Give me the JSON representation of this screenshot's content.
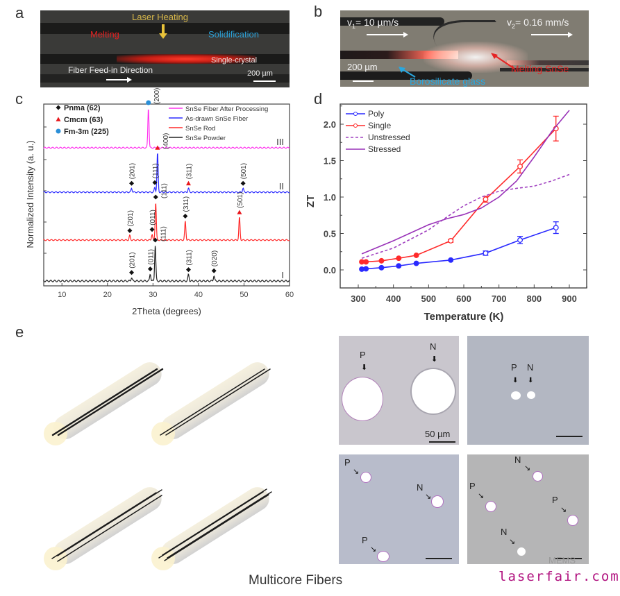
{
  "panels": {
    "a": {
      "label": "a",
      "title": "Laser Heating",
      "melting": "Melting",
      "solidification": "Solidification",
      "single_crystal": "Single-crystal",
      "feed_direction": "Fiber Feed-in Direction",
      "scale": "200 µm",
      "colors": {
        "title": "#d9b94a",
        "melting": "#e02020",
        "solidification": "#2a9fd6"
      }
    },
    "b": {
      "label": "b",
      "v1_prefix": "v",
      "v1_sub": "1",
      "v1_value": "= 10 µm/s",
      "v2_prefix": "v",
      "v2_sub": "2",
      "v2_value": "= 0.16 mm/s",
      "melting": "Melting SnSe",
      "glass": "Borosilicate glass",
      "scale": "200 µm",
      "colors": {
        "melting": "#e52424",
        "glass": "#29a8e0"
      }
    },
    "c": {
      "label": "c"
    },
    "d": {
      "label": "d"
    },
    "e": {
      "label": "e",
      "caption": "Multicore Fibers",
      "micrographs": [
        {
          "markers": [
            "P",
            "N"
          ],
          "scale": "50 µm"
        },
        {
          "markers": [
            "P",
            "N"
          ],
          "scale": ""
        },
        {
          "markers": [
            "P",
            "N",
            "P"
          ],
          "scale": ""
        },
        {
          "markers": [
            "N",
            "P",
            "P",
            "N"
          ],
          "scale": ""
        }
      ],
      "fiber_core_counts": [
        2,
        2,
        3,
        4
      ]
    }
  },
  "watermark": {
    "text": "laserfair.com",
    "overlay": "MEMS"
  },
  "chart_data": [
    {
      "type": "line",
      "panel": "c",
      "title": "",
      "xlabel": "2Theta (degrees)",
      "ylabel": "Normalized Intensity (a. u.)",
      "xlim": [
        6,
        60
      ],
      "xticks": [
        10,
        20,
        30,
        40,
        50,
        60
      ],
      "legend_phases": [
        {
          "symbol": "diamond",
          "color": "#111111",
          "label": "Pnma (62)"
        },
        {
          "symbol": "triangle",
          "color": "#e8161b",
          "label": "Cmcm (63)"
        },
        {
          "symbol": "circle",
          "color": "#2a8fd8",
          "label": "Fm-3m (225)"
        }
      ],
      "legend_position": "top-right",
      "series": [
        {
          "name": "SnSe Fiber After Processing",
          "color": "#ff33ee",
          "roman": "III",
          "peaks": [
            {
              "x": 29.0,
              "h": 1.0,
              "hkl": "(200)",
              "phase": "circle"
            }
          ]
        },
        {
          "name": "As-drawn SnSe Fiber",
          "color": "#2b2bff",
          "roman": "II",
          "peaks": [
            {
              "x": 25.3,
              "h": 0.1,
              "hkl": "(201)",
              "phase": "diamond"
            },
            {
              "x": 30.4,
              "h": 0.12,
              "hkl": "(111)",
              "phase": "diamond"
            },
            {
              "x": 31.0,
              "h": 1.0,
              "hkl": "(400)",
              "phase": "triangle"
            },
            {
              "x": 37.8,
              "h": 0.1,
              "hkl": "(311)",
              "phase": "triangle"
            },
            {
              "x": 49.8,
              "h": 0.1,
              "hkl": "(501)",
              "phase": "diamond"
            }
          ]
        },
        {
          "name": "SnSe Rod",
          "color": "#ff2a2a",
          "roman": "",
          "peaks": [
            {
              "x": 24.9,
              "h": 0.12,
              "hkl": "(201)",
              "phase": "diamond"
            },
            {
              "x": 29.8,
              "h": 0.15,
              "hkl": "(011)",
              "phase": "diamond"
            },
            {
              "x": 30.6,
              "h": 1.0,
              "hkl": "(111)",
              "phase": "diamond"
            },
            {
              "x": 37.1,
              "h": 0.5,
              "hkl": "(311)",
              "phase": "diamond"
            },
            {
              "x": 49.0,
              "h": 0.6,
              "hkl": "(501)",
              "phase": "triangle"
            }
          ]
        },
        {
          "name": "SnSe Powder",
          "color": "#222222",
          "roman": "I",
          "peaks": [
            {
              "x": 25.3,
              "h": 0.1,
              "hkl": "(201)",
              "phase": "diamond"
            },
            {
              "x": 29.4,
              "h": 0.2,
              "hkl": "(011)",
              "phase": "diamond"
            },
            {
              "x": 30.5,
              "h": 1.0,
              "hkl": "(111)",
              "phase": "diamond"
            },
            {
              "x": 37.8,
              "h": 0.18,
              "hkl": "(311)",
              "phase": "diamond"
            },
            {
              "x": 43.4,
              "h": 0.15,
              "hkl": "(020)",
              "phase": "diamond"
            }
          ]
        }
      ]
    },
    {
      "type": "line",
      "panel": "d",
      "title": "",
      "xlabel": "Temperature (K)",
      "ylabel": "ZT",
      "xlim": [
        250,
        950
      ],
      "ylim": [
        -0.25,
        2.25
      ],
      "xticks": [
        300,
        400,
        500,
        600,
        700,
        800,
        900
      ],
      "yticks": [
        0.0,
        0.5,
        1.0,
        1.5,
        2.0
      ],
      "yticklabels": [
        "0.0",
        "0.5",
        "1.0",
        "1.5",
        "2.0"
      ],
      "legend_position": "top-left",
      "series": [
        {
          "name": "Poly",
          "color": "#2a2aff",
          "style": "line-marker",
          "x": [
            310,
            322,
            366,
            415,
            465,
            563,
            662,
            760,
            862
          ],
          "y": [
            0.01,
            0.015,
            0.03,
            0.055,
            0.09,
            0.135,
            0.23,
            0.41,
            0.58
          ],
          "err": [
            0,
            0,
            0,
            0,
            0,
            0,
            0.03,
            0.05,
            0.08
          ],
          "open": [
            false,
            false,
            false,
            false,
            false,
            false,
            true,
            true,
            true
          ]
        },
        {
          "name": "Single",
          "color": "#ff2a2a",
          "style": "line-marker",
          "x": [
            310,
            322,
            366,
            415,
            465,
            563,
            662,
            760,
            862
          ],
          "y": [
            0.11,
            0.11,
            0.125,
            0.16,
            0.2,
            0.4,
            0.97,
            1.42,
            1.94
          ],
          "err": [
            0,
            0,
            0,
            0,
            0,
            0.02,
            0.04,
            0.09,
            0.17
          ],
          "open": [
            false,
            false,
            false,
            false,
            false,
            true,
            true,
            true,
            true
          ]
        },
        {
          "name": "Unstressed",
          "color": "#a040c0",
          "style": "dashed",
          "x": [
            310,
            400,
            500,
            550,
            600,
            650,
            700,
            750,
            800,
            850,
            900
          ],
          "y": [
            0.16,
            0.3,
            0.55,
            0.72,
            0.88,
            1.0,
            1.08,
            1.12,
            1.15,
            1.22,
            1.31
          ]
        },
        {
          "name": "Stressed",
          "color": "#9932b8",
          "style": "solid",
          "x": [
            310,
            400,
            500,
            550,
            600,
            650,
            700,
            750,
            800,
            850,
            900
          ],
          "y": [
            0.22,
            0.4,
            0.62,
            0.7,
            0.76,
            0.85,
            1.0,
            1.22,
            1.55,
            1.9,
            2.19
          ]
        }
      ]
    }
  ]
}
